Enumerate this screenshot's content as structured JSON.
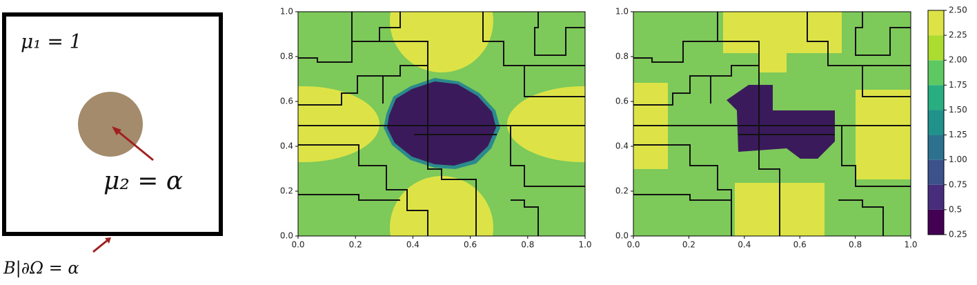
{
  "diagram": {
    "mu1": "μ₁ = 1",
    "mu2": "μ₂ = α",
    "boundary": "B|∂Ω = α"
  },
  "plots": [
    {
      "xticks": [
        {
          "value": 0,
          "label": "0.0"
        },
        {
          "value": 0.2,
          "label": "0.2"
        },
        {
          "value": 0.4,
          "label": "0.4"
        },
        {
          "value": 0.6,
          "label": "0.6"
        },
        {
          "value": 0.8,
          "label": "0.8"
        },
        {
          "value": 1,
          "label": "1.0"
        }
      ],
      "yticks": [
        {
          "value": 0,
          "label": "0.0"
        },
        {
          "value": 0.2,
          "label": "0.2"
        },
        {
          "value": 0.4,
          "label": "0.4"
        },
        {
          "value": 0.6,
          "label": "0.6"
        },
        {
          "value": 0.8,
          "label": "0.8"
        },
        {
          "value": 1,
          "label": "1.0"
        }
      ]
    },
    {
      "xticks": [
        {
          "value": 0,
          "label": "0.0"
        },
        {
          "value": 0.2,
          "label": "0.2"
        },
        {
          "value": 0.4,
          "label": "0.4"
        },
        {
          "value": 0.6,
          "label": "0.6"
        },
        {
          "value": 0.8,
          "label": "0.8"
        },
        {
          "value": 1,
          "label": "1.0"
        }
      ],
      "yticks": [
        {
          "value": 0,
          "label": "0.0"
        },
        {
          "value": 0.2,
          "label": "0.2"
        },
        {
          "value": 0.4,
          "label": "0.4"
        },
        {
          "value": 0.6,
          "label": "0.6"
        },
        {
          "value": 0.8,
          "label": "0.8"
        },
        {
          "value": 1,
          "label": "1.0"
        }
      ]
    }
  ],
  "colorbar": {
    "ticks": [
      {
        "value": 0.25,
        "label": "0.25"
      },
      0.5,
      0.75,
      {
        "value": 1,
        "label": "1.00"
      },
      1.25,
      {
        "value": 1.5,
        "label": "1.50"
      },
      1.75,
      {
        "value": 2,
        "label": "2.00"
      },
      2.25,
      {
        "value": 2.5,
        "label": "2.50"
      }
    ]
  }
}
